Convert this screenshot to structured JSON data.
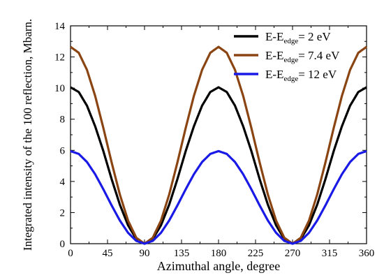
{
  "chart_data": {
    "type": "line",
    "xlabel": "Azimuthal angle, degree",
    "ylabel": "Integrated intensity of the 100 reflection, Mbarn.",
    "xlim": [
      0,
      360
    ],
    "ylim": [
      0,
      14
    ],
    "xticks": [
      0,
      45,
      90,
      135,
      180,
      225,
      270,
      315,
      360
    ],
    "yticks": [
      0,
      2,
      4,
      6,
      8,
      10,
      12,
      14
    ],
    "x": [
      0,
      10,
      20,
      30,
      40,
      50,
      60,
      70,
      80,
      90,
      100,
      110,
      120,
      130,
      140,
      150,
      160,
      170,
      180,
      190,
      200,
      210,
      220,
      230,
      240,
      250,
      260,
      270,
      280,
      290,
      300,
      310,
      320,
      330,
      340,
      350,
      360
    ],
    "series": [
      {
        "name": "E-E",
        "sub": "edge",
        "suffix": "= 2 eV",
        "color": "#000000",
        "values": [
          10.05,
          9.75,
          8.87,
          7.54,
          5.94,
          4.15,
          2.51,
          1.18,
          0.3,
          0,
          0.3,
          1.18,
          2.51,
          4.15,
          5.94,
          7.54,
          8.87,
          9.75,
          10.05,
          9.75,
          8.87,
          7.54,
          5.94,
          4.15,
          2.51,
          1.18,
          0.3,
          0,
          0.3,
          1.18,
          2.51,
          4.15,
          5.94,
          7.54,
          8.87,
          9.75,
          10.05
        ]
      },
      {
        "name": "E-E",
        "sub": "edge",
        "suffix": "= 7.4 eV",
        "color": "#8b4513",
        "values": [
          12.65,
          12.27,
          11.17,
          9.49,
          7.42,
          5.22,
          3.16,
          1.48,
          0.38,
          0,
          0.38,
          1.48,
          3.16,
          5.22,
          7.42,
          9.49,
          11.17,
          12.27,
          12.65,
          12.27,
          11.17,
          9.49,
          7.42,
          5.22,
          3.16,
          1.48,
          0.38,
          0,
          0.38,
          1.48,
          3.16,
          5.22,
          7.42,
          9.49,
          11.17,
          12.27,
          12.65
        ]
      },
      {
        "name": "E-E",
        "sub": "edge",
        "suffix": "= 12 eV",
        "color": "#1a1ae6",
        "values": [
          5.95,
          5.77,
          5.25,
          4.46,
          3.49,
          2.46,
          1.49,
          0.7,
          0.18,
          0,
          0.18,
          0.7,
          1.49,
          2.46,
          3.49,
          4.46,
          5.25,
          5.77,
          5.95,
          5.77,
          5.25,
          4.46,
          3.49,
          2.46,
          1.49,
          0.7,
          0.18,
          0,
          0.18,
          0.7,
          1.49,
          2.46,
          3.49,
          4.46,
          5.25,
          5.77,
          5.95
        ]
      }
    ]
  }
}
